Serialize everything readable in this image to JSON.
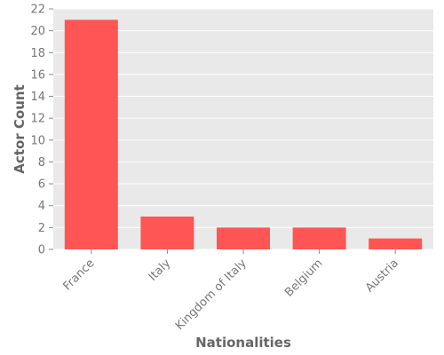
{
  "chart_data": {
    "type": "bar",
    "categories": [
      "France",
      "Italy",
      "Kingdom of Italy",
      "Belgium",
      "Austria"
    ],
    "values": [
      21,
      3,
      2,
      2,
      1
    ],
    "xlabel": "Nationalities",
    "ylabel": "Actor Count",
    "ylim": [
      0,
      22
    ],
    "yticks": [
      0,
      2,
      4,
      6,
      8,
      10,
      12,
      14,
      16,
      18,
      20,
      22
    ],
    "grid": true,
    "colors": {
      "bar": "#ff5555",
      "plot_background": "#e9e9e9",
      "grid": "#ffffff"
    }
  }
}
